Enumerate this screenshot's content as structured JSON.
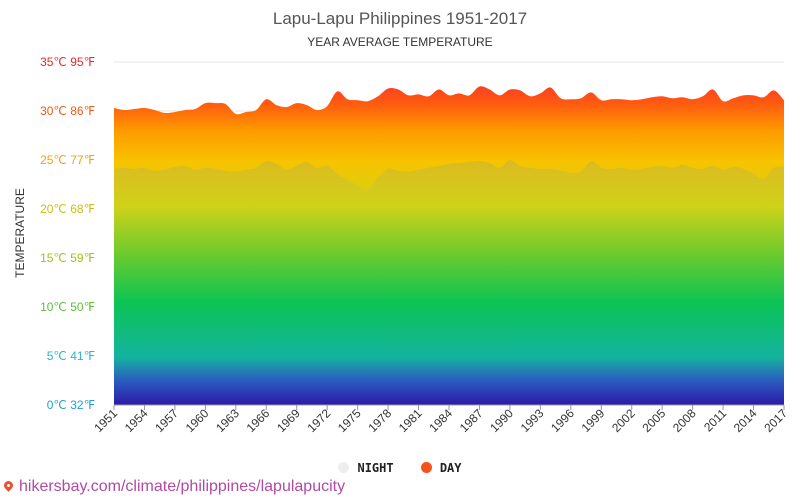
{
  "chart_data": {
    "type": "area",
    "title": "Lapu-Lapu Philippines 1951-2017",
    "subtitle": "YEAR AVERAGE TEMPERATURE",
    "ylabel": "TEMPERATURE",
    "xlabel": "",
    "ylim": [
      0,
      35
    ],
    "xlim": [
      1951,
      2017
    ],
    "x_ticks": [
      "1951",
      "1954",
      "1957",
      "1960",
      "1963",
      "1966",
      "1969",
      "1972",
      "1975",
      "1978",
      "1981",
      "1984",
      "1987",
      "1990",
      "1993",
      "1996",
      "1999",
      "2002",
      "2005",
      "2008",
      "2011",
      "2014",
      "2017"
    ],
    "y_ticks": [
      {
        "value": 0,
        "label": "0℃ 32℉",
        "color": "#1fa3c8"
      },
      {
        "value": 5,
        "label": "5℃ 41℉",
        "color": "#2bb6c6"
      },
      {
        "value": 10,
        "label": "10℃ 50℉",
        "color": "#5bbf3a"
      },
      {
        "value": 15,
        "label": "15℃ 59℉",
        "color": "#a4c21a"
      },
      {
        "value": 20,
        "label": "20℃ 68℉",
        "color": "#c9bf12"
      },
      {
        "value": 25,
        "label": "25℃ 77℉",
        "color": "#e8a417"
      },
      {
        "value": 30,
        "label": "30℃ 86℉",
        "color": "#ee5a16"
      },
      {
        "value": 35,
        "label": "35℃ 95℉",
        "color": "#e8282b"
      }
    ],
    "legend_position": "bottom-center",
    "grid": true,
    "x": [
      1951,
      1952,
      1953,
      1954,
      1955,
      1956,
      1957,
      1958,
      1959,
      1960,
      1961,
      1962,
      1963,
      1964,
      1965,
      1966,
      1967,
      1968,
      1969,
      1970,
      1971,
      1972,
      1973,
      1974,
      1975,
      1976,
      1977,
      1978,
      1979,
      1980,
      1981,
      1982,
      1983,
      1984,
      1985,
      1986,
      1987,
      1988,
      1989,
      1990,
      1991,
      1992,
      1993,
      1994,
      1995,
      1996,
      1997,
      1998,
      1999,
      2000,
      2001,
      2002,
      2003,
      2004,
      2005,
      2006,
      2007,
      2008,
      2009,
      2010,
      2011,
      2012,
      2013,
      2014,
      2015,
      2016,
      2017
    ],
    "series": [
      {
        "name": "DAY",
        "color": "#f5531c",
        "values": [
          30.3,
          30.1,
          30.2,
          30.3,
          30.1,
          29.8,
          29.9,
          30.1,
          30.2,
          30.8,
          30.8,
          30.7,
          29.7,
          29.9,
          30.1,
          31.2,
          30.6,
          30.4,
          30.8,
          30.6,
          30.1,
          30.5,
          32.0,
          31.2,
          31.1,
          31.0,
          31.5,
          32.3,
          32.2,
          31.6,
          31.7,
          31.5,
          32.2,
          31.6,
          31.8,
          31.6,
          32.5,
          32.2,
          31.6,
          32.2,
          32.1,
          31.5,
          31.8,
          32.4,
          31.3,
          31.2,
          31.3,
          31.9,
          31.1,
          31.2,
          31.2,
          31.1,
          31.2,
          31.4,
          31.5,
          31.3,
          31.4,
          31.2,
          31.5,
          32.2,
          31.0,
          31.3,
          31.6,
          31.6,
          31.4,
          32.1,
          31.1
        ]
      },
      {
        "name": "NIGHT",
        "color": "#f2f2f2",
        "values": [
          24.1,
          24.2,
          24.1,
          24.2,
          23.9,
          24.0,
          24.3,
          24.4,
          24.0,
          24.2,
          24.1,
          23.9,
          23.8,
          24.0,
          24.2,
          24.9,
          24.6,
          24.0,
          24.4,
          24.8,
          24.2,
          24.4,
          23.6,
          23.0,
          22.4,
          21.9,
          23.2,
          24.1,
          23.9,
          23.8,
          24.0,
          24.2,
          24.4,
          24.6,
          24.7,
          24.8,
          24.9,
          24.7,
          24.2,
          25.0,
          24.4,
          24.2,
          24.1,
          24.1,
          23.9,
          23.7,
          23.8,
          24.9,
          24.2,
          24.1,
          24.2,
          24.0,
          24.1,
          24.3,
          24.4,
          24.2,
          24.5,
          24.2,
          24.1,
          24.4,
          24.0,
          24.3,
          24.1,
          23.6,
          23.1,
          24.2,
          24.3
        ]
      }
    ]
  },
  "legend": {
    "items": [
      {
        "label": "NIGHT",
        "color": "#eeeeee"
      },
      {
        "label": "DAY",
        "color": "#f5531c"
      }
    ]
  },
  "source": {
    "text": "hikersbay.com/climate/philippines/lapulapucity"
  }
}
